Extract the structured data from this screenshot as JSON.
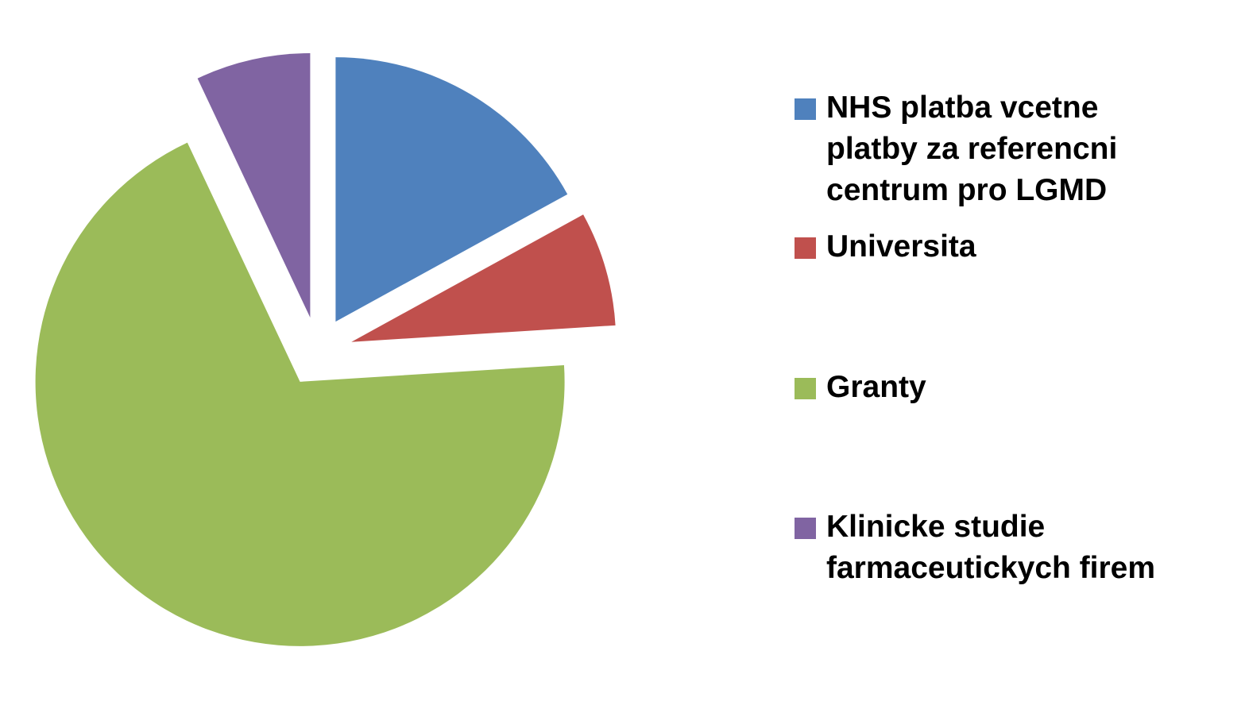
{
  "chart_data": {
    "type": "pie",
    "exploded": true,
    "legend_position": "right",
    "slices": [
      {
        "label": "NHS platba vcetne\nplatby za referencni\ncentrum pro LGMD",
        "value": 17,
        "color": "#4F81BD"
      },
      {
        "label": "Universita",
        "value": 7,
        "color": "#C0504D"
      },
      {
        "label": "Granty",
        "value": 69,
        "color": "#9BBB59"
      },
      {
        "label": "Klinicke studie\nfarmaceutickych firem",
        "value": 7,
        "color": "#8064A2"
      }
    ]
  }
}
